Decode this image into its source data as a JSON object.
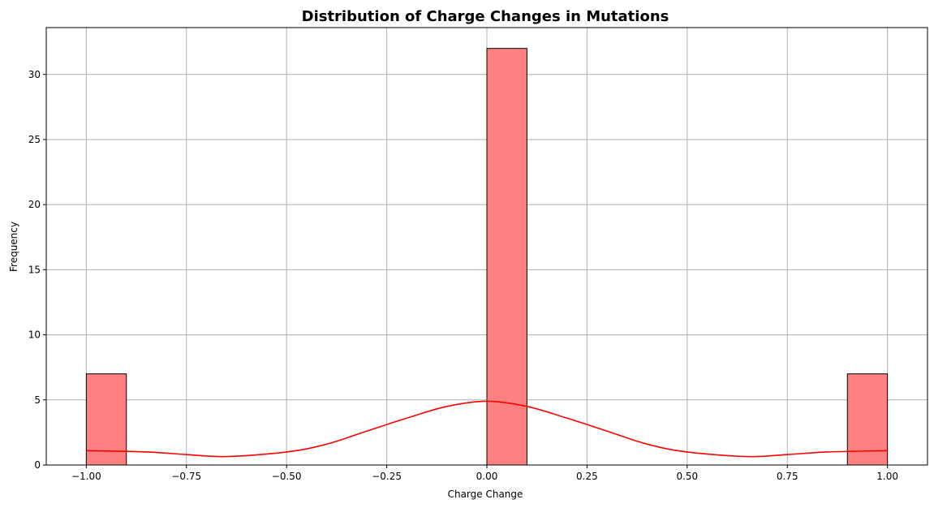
{
  "chart_data": {
    "type": "bar",
    "title": "Distribution of Charge Changes in Mutations",
    "xlabel": "Charge Change",
    "ylabel": "Frequency",
    "xlim": [
      -1.1,
      1.1
    ],
    "ylim": [
      0,
      33.6
    ],
    "bin_width": 0.1,
    "bins": [
      {
        "start": -1.0,
        "end": -0.9,
        "count": 7
      },
      {
        "start": 0.0,
        "end": 0.1,
        "count": 32
      },
      {
        "start": 0.9,
        "end": 1.0,
        "count": 7
      }
    ],
    "xticks": [
      -1.0,
      -0.75,
      -0.5,
      -0.25,
      0.0,
      0.25,
      0.5,
      0.75,
      1.0
    ],
    "xtick_labels": [
      "−1.00",
      "−0.75",
      "−0.50",
      "−0.25",
      "0.00",
      "0.25",
      "0.50",
      "0.75",
      "1.00"
    ],
    "yticks": [
      0,
      5,
      10,
      15,
      20,
      25,
      30
    ],
    "ytick_labels": [
      "0",
      "5",
      "10",
      "15",
      "20",
      "25",
      "30"
    ],
    "kde": {
      "x": [
        -1.0,
        -0.85,
        -0.75,
        -0.65,
        -0.5,
        -0.4,
        -0.3,
        -0.2,
        -0.1,
        0.0,
        0.1,
        0.2,
        0.3,
        0.4,
        0.5,
        0.65,
        0.75,
        0.85,
        1.0
      ],
      "y": [
        1.1,
        1.0,
        0.8,
        0.65,
        1.0,
        1.6,
        2.6,
        3.6,
        4.5,
        4.9,
        4.5,
        3.6,
        2.6,
        1.6,
        1.0,
        0.65,
        0.8,
        1.0,
        1.1
      ]
    },
    "grid": true,
    "colors": {
      "bar_fill": "#ff8080",
      "bar_edge": "#000000",
      "kde_line": "#ff0000",
      "grid": "#b0b0b0"
    }
  }
}
